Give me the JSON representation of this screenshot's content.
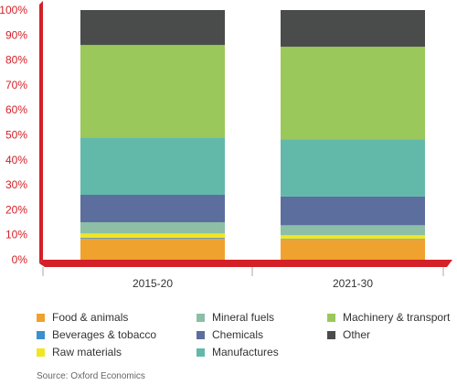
{
  "chart_data": {
    "type": "bar",
    "stacked": true,
    "categories": [
      "2015-20",
      "2021-30"
    ],
    "ylim": [
      0,
      100
    ],
    "yticks": [
      "0%",
      "10%",
      "20%",
      "30%",
      "40%",
      "50%",
      "60%",
      "70%",
      "80%",
      "90%",
      "100%"
    ],
    "series": [
      {
        "name": "Food & animals",
        "color": "#f0a22e",
        "values": [
          8.5,
          8
        ]
      },
      {
        "name": "Beverages & tobacco",
        "color": "#3b8fd0",
        "values": [
          0.3,
          0.3
        ]
      },
      {
        "name": "Raw materials",
        "color": "#f2e623",
        "values": [
          1.7,
          1.5
        ]
      },
      {
        "name": "Mineral fuels",
        "color": "#8cbfa6",
        "values": [
          4.5,
          4
        ]
      },
      {
        "name": "Chemicals",
        "color": "#5b6e9e",
        "values": [
          11,
          11.5
        ]
      },
      {
        "name": "Manufactures",
        "color": "#62b9aa",
        "values": [
          23,
          23
        ]
      },
      {
        "name": "Machinery & transport",
        "color": "#9bc85b",
        "values": [
          37,
          37
        ]
      },
      {
        "name": "Other",
        "color": "#4a4c4b",
        "values": [
          14,
          14.7
        ]
      }
    ],
    "legend_order": [
      "Food & animals",
      "Mineral fuels",
      "Machinery & transport",
      "Beverages & tobacco",
      "Chemicals",
      "Other",
      "Raw materials",
      "Manufactures"
    ],
    "axis_color": "#d42027",
    "legend_position": "bottom"
  },
  "source": "Source: Oxford Economics"
}
